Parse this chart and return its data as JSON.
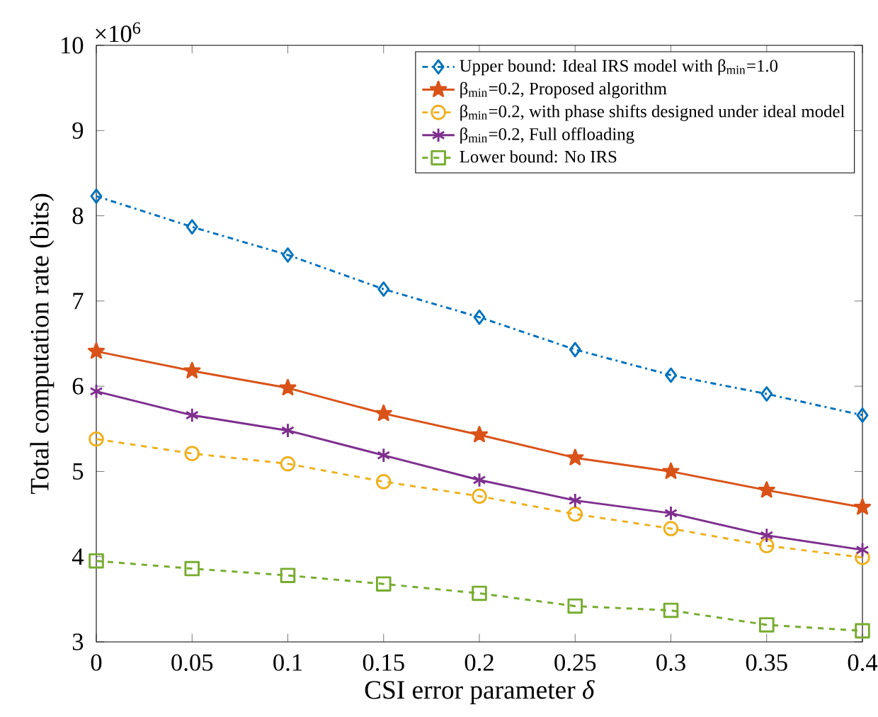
{
  "chart_data": {
    "type": "line",
    "xlabel": "CSI error parameter *δ*",
    "ylabel": "Total computation rate (bits)",
    "annotations": [
      "×10$^{6}$"
    ],
    "x": [
      0,
      0.05,
      0.1,
      0.15,
      0.2,
      0.25,
      0.3,
      0.35,
      0.4
    ],
    "xlim": [
      0,
      0.4
    ],
    "xticks": [
      0,
      0.05,
      0.1,
      0.15,
      0.2,
      0.25,
      0.3,
      0.35,
      0.4
    ],
    "ylim": [
      3,
      10
    ],
    "yticks": [
      3,
      4,
      5,
      6,
      7,
      8,
      9,
      10
    ],
    "legend": "top right",
    "series": [
      {
        "name": "Upper bound: Ideal IRS model with β$_{min}$=1.0",
        "color": "#0072bd",
        "marker": "diamond",
        "line_style": "dashdot",
        "values": [
          8.23,
          7.87,
          7.54,
          7.14,
          6.81,
          6.43,
          6.13,
          5.91,
          5.66
        ]
      },
      {
        "name": "β$_{min}$=0.2, Proposed algorithm",
        "color": "#d95319",
        "marker": "star",
        "line_style": "solid",
        "values": [
          6.41,
          6.18,
          5.98,
          5.68,
          5.43,
          5.16,
          5.0,
          4.78,
          4.58
        ]
      },
      {
        "name": "β$_{min}$=0.2, with phase shifts designed under ideal model",
        "color": "#edb120",
        "marker": "circle",
        "line_style": "dashed",
        "values": [
          5.38,
          5.21,
          5.09,
          4.88,
          4.71,
          4.5,
          4.33,
          4.13,
          3.99
        ]
      },
      {
        "name": "β$_{min}$=0.2, Full offloading",
        "color": "#7e2f8e",
        "marker": "cross",
        "line_style": "solid",
        "values": [
          5.94,
          5.66,
          5.48,
          5.19,
          4.9,
          4.66,
          4.51,
          4.25,
          4.08
        ]
      },
      {
        "name": "Lower bound: No IRS",
        "color": "#77ac30",
        "marker": "square",
        "line_style": "dashed",
        "values": [
          3.95,
          3.86,
          3.78,
          3.68,
          3.57,
          3.42,
          3.37,
          3.2,
          3.13
        ]
      }
    ]
  }
}
